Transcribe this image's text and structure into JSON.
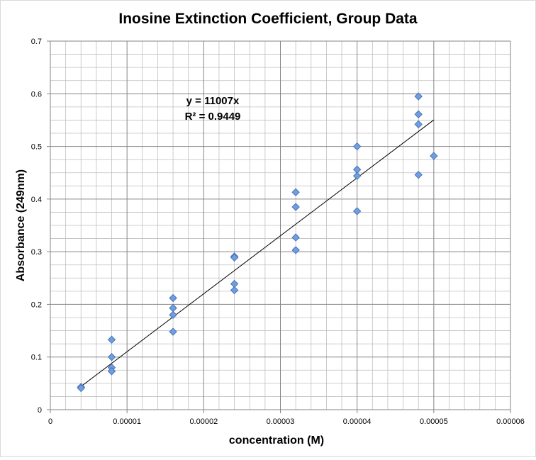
{
  "chart_data": {
    "type": "scatter",
    "title": "Inosine Extinction Coefficient, Group Data",
    "xlabel": "concentration (M)",
    "ylabel": "Absorbance (249nm)",
    "xlim": [
      0,
      6e-05
    ],
    "ylim": [
      0,
      0.7
    ],
    "x_ticks": [
      0,
      1e-05,
      2e-05,
      3e-05,
      4e-05,
      5e-05,
      6e-05
    ],
    "x_tick_labels": [
      "0",
      "0.00001",
      "0.00002",
      "0.00003",
      "0.00004",
      "0.00005",
      "0.00006"
    ],
    "y_ticks": [
      0,
      0.1,
      0.2,
      0.3,
      0.4,
      0.5,
      0.6,
      0.7
    ],
    "y_tick_labels": [
      "0",
      "0.1",
      "0.2",
      "0.3",
      "0.4",
      "0.5",
      "0.6",
      "0.7"
    ],
    "grid": {
      "major": true,
      "minor": true
    },
    "marker_color": "#6f9fe0",
    "marker_edge_color": "#4a72b8",
    "trendline": {
      "slope": 11007,
      "intercept": 0,
      "x_range": [
        4e-06,
        5e-05
      ],
      "equation": "y = 11007x",
      "r2_text": "R² = 0.9449",
      "color": "#000000"
    },
    "points": [
      {
        "x": 4e-06,
        "y": 0.043
      },
      {
        "x": 4e-06,
        "y": 0.041
      },
      {
        "x": 8e-06,
        "y": 0.133
      },
      {
        "x": 8e-06,
        "y": 0.1
      },
      {
        "x": 8e-06,
        "y": 0.08
      },
      {
        "x": 8e-06,
        "y": 0.073
      },
      {
        "x": 1.6e-05,
        "y": 0.212
      },
      {
        "x": 1.6e-05,
        "y": 0.193
      },
      {
        "x": 1.6e-05,
        "y": 0.18
      },
      {
        "x": 1.6e-05,
        "y": 0.148
      },
      {
        "x": 2.4e-05,
        "y": 0.291
      },
      {
        "x": 2.4e-05,
        "y": 0.289
      },
      {
        "x": 2.4e-05,
        "y": 0.239
      },
      {
        "x": 2.4e-05,
        "y": 0.227
      },
      {
        "x": 3.2e-05,
        "y": 0.413
      },
      {
        "x": 3.2e-05,
        "y": 0.385
      },
      {
        "x": 3.2e-05,
        "y": 0.327
      },
      {
        "x": 3.2e-05,
        "y": 0.303
      },
      {
        "x": 4e-05,
        "y": 0.5
      },
      {
        "x": 4e-05,
        "y": 0.456
      },
      {
        "x": 4e-05,
        "y": 0.444
      },
      {
        "x": 4e-05,
        "y": 0.377
      },
      {
        "x": 4.8e-05,
        "y": 0.595
      },
      {
        "x": 4.8e-05,
        "y": 0.561
      },
      {
        "x": 4.8e-05,
        "y": 0.542
      },
      {
        "x": 4.8e-05,
        "y": 0.446
      },
      {
        "x": 5e-05,
        "y": 0.482
      }
    ]
  }
}
